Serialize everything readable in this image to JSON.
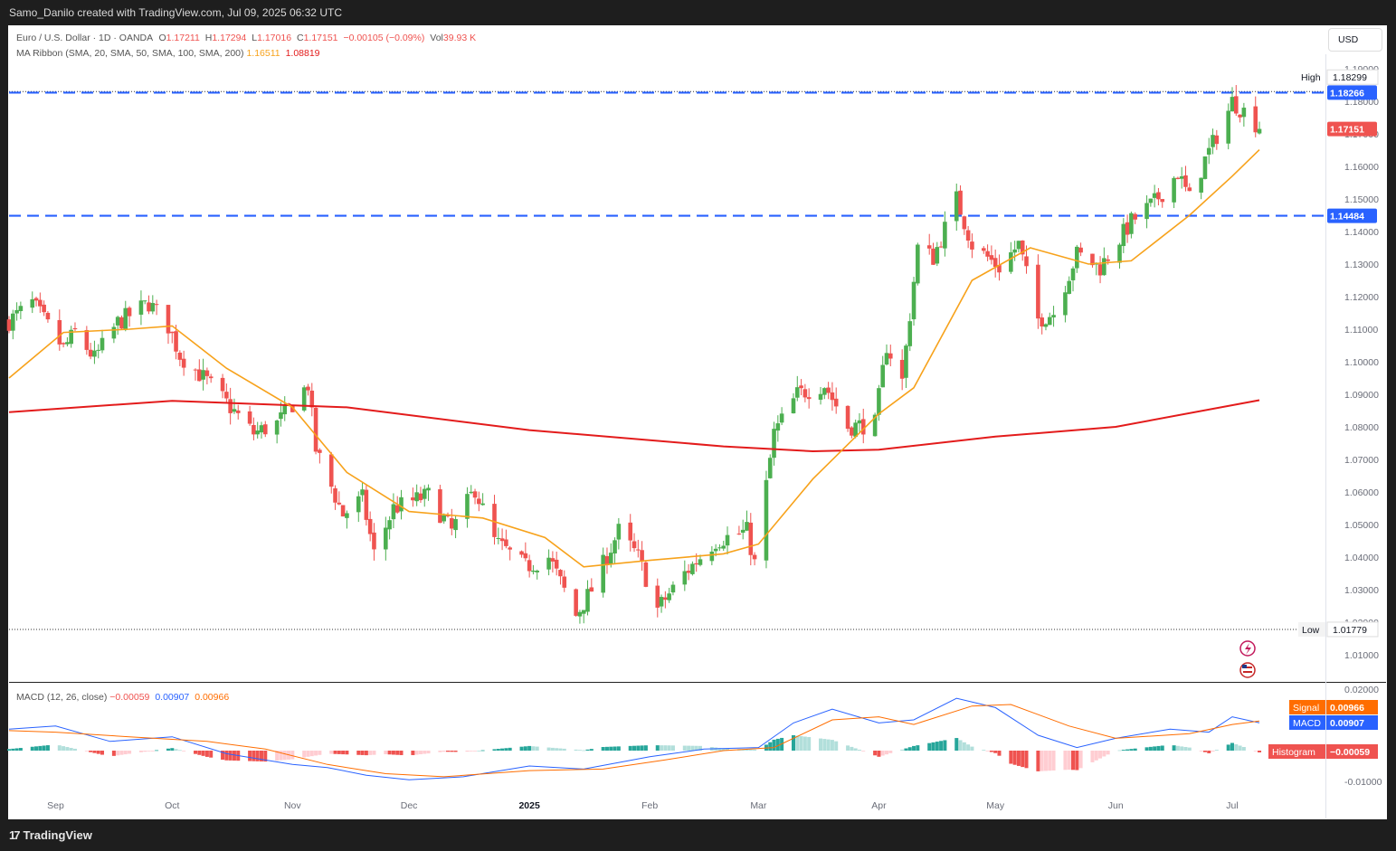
{
  "header": {
    "created_by": "Samo_Danilo created with TradingView.com, Jul 09, 2025 06:32 UTC"
  },
  "footer": {
    "brand": "TradingView",
    "logo_glyph": "17"
  },
  "legend": {
    "symbol": "Euro / U.S. Dollar · 1D · OANDA",
    "o_label": "O",
    "o_value": "1.17211",
    "h_label": "H",
    "h_value": "1.17294",
    "l_label": "L",
    "l_value": "1.17016",
    "c_label": "C",
    "c_value": "1.17151",
    "change": "−0.00105 (−0.09%)",
    "vol_label": "Vol",
    "vol_value": "39.93 K",
    "ma_label": "MA Ribbon (SMA, 20, SMA, 50, SMA, 100, SMA, 200)",
    "ma1_value": "1.16511",
    "ma2_value": "1.08819",
    "macd_label": "MACD (12, 26, close)",
    "macd_hist": "−0.00059",
    "macd_line": "0.00907",
    "macd_signal": "0.00966"
  },
  "currency_button": "USD",
  "colors": {
    "up": "#26a69a",
    "up_fill": "#4caf50",
    "down": "#ef5350",
    "ma20": "#f7a21b",
    "ma200": "#e31b1b",
    "level": "#2962ff",
    "macd": "#2962ff",
    "signal": "#ff6d00"
  },
  "chart_data": [
    {
      "type": "candlestick",
      "title": "Euro / U.S. Dollar · 1D · OANDA",
      "ylim": [
        1.0,
        1.19
      ],
      "y_ticks": [
        "1.01000",
        "1.02000",
        "1.03000",
        "1.04000",
        "1.05000",
        "1.06000",
        "1.07000",
        "1.08000",
        "1.09000",
        "1.10000",
        "1.11000",
        "1.12000",
        "1.13000",
        "1.14000",
        "1.15000",
        "1.16000",
        "1.17000",
        "1.18000",
        "1.19000"
      ],
      "x_labels": [
        {
          "label": "Sep",
          "date": "2024-09-01"
        },
        {
          "label": "Oct",
          "date": "2024-10-01"
        },
        {
          "label": "Nov",
          "date": "2024-11-01"
        },
        {
          "label": "Dec",
          "date": "2024-12-01"
        },
        {
          "label": "2025",
          "date": "2025-01-01"
        },
        {
          "label": "Feb",
          "date": "2025-02-01"
        },
        {
          "label": "Mar",
          "date": "2025-03-01"
        },
        {
          "label": "Apr",
          "date": "2025-04-01"
        },
        {
          "label": "May",
          "date": "2025-05-01"
        },
        {
          "label": "Jun",
          "date": "2025-06-01"
        },
        {
          "label": "Jul",
          "date": "2025-07-01"
        }
      ],
      "x_range": [
        "2024-08-20",
        "2025-07-25"
      ],
      "price_path": [
        [
          "2024-08-20",
          1.1125
        ],
        [
          "2024-08-26",
          1.118
        ],
        [
          "2024-09-03",
          1.104
        ],
        [
          "2024-09-06",
          1.109
        ],
        [
          "2024-09-11",
          1.101
        ],
        [
          "2024-09-17",
          1.112
        ],
        [
          "2024-09-25",
          1.118
        ],
        [
          "2024-09-30",
          1.111
        ],
        [
          "2024-10-03",
          1.102
        ],
        [
          "2024-10-10",
          1.094
        ],
        [
          "2024-10-16",
          1.086
        ],
        [
          "2024-10-22",
          1.078
        ],
        [
          "2024-10-28",
          1.081
        ],
        [
          "2024-11-01",
          1.087
        ],
        [
          "2024-11-05",
          1.093
        ],
        [
          "2024-11-07",
          1.073
        ],
        [
          "2024-11-14",
          1.053
        ],
        [
          "2024-11-19",
          1.058
        ],
        [
          "2024-11-22",
          1.041
        ],
        [
          "2024-11-27",
          1.055
        ],
        [
          "2024-12-06",
          1.059
        ],
        [
          "2024-12-12",
          1.048
        ],
        [
          "2024-12-18",
          1.061
        ],
        [
          "2024-12-23",
          1.045
        ],
        [
          "2024-12-31",
          1.037
        ],
        [
          "2025-01-06",
          1.04
        ],
        [
          "2025-01-13",
          1.022
        ],
        [
          "2025-01-17",
          1.03
        ],
        [
          "2025-01-24",
          1.048
        ],
        [
          "2025-01-29",
          1.04
        ],
        [
          "2025-02-03",
          1.024
        ],
        [
          "2025-02-10",
          1.035
        ],
        [
          "2025-02-18",
          1.045
        ],
        [
          "2025-02-26",
          1.048
        ],
        [
          "2025-02-28",
          1.038
        ],
        [
          "2025-03-05",
          1.078
        ],
        [
          "2025-03-11",
          1.09
        ],
        [
          "2025-03-18",
          1.093
        ],
        [
          "2025-03-24",
          1.08
        ],
        [
          "2025-03-31",
          1.081
        ],
        [
          "2025-04-03",
          1.105
        ],
        [
          "2025-04-07",
          1.094
        ],
        [
          "2025-04-11",
          1.135
        ],
        [
          "2025-04-15",
          1.132
        ],
        [
          "2025-04-21",
          1.15
        ],
        [
          "2025-04-25",
          1.136
        ],
        [
          "2025-05-02",
          1.129
        ],
        [
          "2025-05-07",
          1.136
        ],
        [
          "2025-05-12",
          1.113
        ],
        [
          "2025-05-16",
          1.115
        ],
        [
          "2025-05-22",
          1.133
        ],
        [
          "2025-05-28",
          1.129
        ],
        [
          "2025-06-05",
          1.143
        ],
        [
          "2025-06-11",
          1.149
        ],
        [
          "2025-06-17",
          1.158
        ],
        [
          "2025-06-20",
          1.15
        ],
        [
          "2025-06-24",
          1.162
        ],
        [
          "2025-06-30",
          1.177
        ],
        [
          "2025-07-01",
          1.18
        ],
        [
          "2025-07-04",
          1.177
        ],
        [
          "2025-07-08",
          1.172
        ]
      ],
      "last_close": 1.17151,
      "series": [
        {
          "name": "SMA 20",
          "values": [
            [
              "2024-08-20",
              1.095
            ],
            [
              "2024-09-03",
              1.109
            ],
            [
              "2024-09-20",
              1.11
            ],
            [
              "2024-10-01",
              1.111
            ],
            [
              "2024-10-15",
              1.098
            ],
            [
              "2024-11-01",
              1.086
            ],
            [
              "2024-11-15",
              1.066
            ],
            [
              "2024-12-01",
              1.054
            ],
            [
              "2024-12-20",
              1.052
            ],
            [
              "2025-01-05",
              1.046
            ],
            [
              "2025-01-15",
              1.037
            ],
            [
              "2025-02-01",
              1.039
            ],
            [
              "2025-02-20",
              1.041
            ],
            [
              "2025-03-01",
              1.044
            ],
            [
              "2025-03-15",
              1.064
            ],
            [
              "2025-04-01",
              1.084
            ],
            [
              "2025-04-10",
              1.092
            ],
            [
              "2025-04-25",
              1.125
            ],
            [
              "2025-05-10",
              1.135
            ],
            [
              "2025-05-25",
              1.13
            ],
            [
              "2025-06-05",
              1.131
            ],
            [
              "2025-06-20",
              1.145
            ],
            [
              "2025-07-01",
              1.157
            ],
            [
              "2025-07-08",
              1.16511
            ]
          ]
        },
        {
          "name": "SMA 200",
          "values": [
            [
              "2024-08-20",
              1.0845
            ],
            [
              "2024-10-01",
              1.088
            ],
            [
              "2024-11-15",
              1.086
            ],
            [
              "2025-01-01",
              1.079
            ],
            [
              "2025-02-20",
              1.074
            ],
            [
              "2025-03-15",
              1.0725
            ],
            [
              "2025-04-01",
              1.073
            ],
            [
              "2025-05-01",
              1.077
            ],
            [
              "2025-06-01",
              1.08
            ],
            [
              "2025-07-08",
              1.08819
            ]
          ]
        }
      ],
      "levels": [
        1.18266,
        1.14484
      ],
      "high": {
        "label": "High",
        "value": "1.18299"
      },
      "low": {
        "label": "Low",
        "value": "1.01779"
      },
      "price_labels": {
        "level_high": "1.18266",
        "last": "1.17151",
        "level_low": "1.14484"
      }
    },
    {
      "type": "macd",
      "title": "MACD (12, 26, close)",
      "ylim": [
        -0.015,
        0.02
      ],
      "y_ticks": [
        "0.02000",
        "-0.01000"
      ],
      "series": [
        {
          "name": "MACD",
          "values": [
            [
              "2024-08-20",
              0.007
            ],
            [
              "2024-09-01",
              0.008
            ],
            [
              "2024-09-15",
              0.003
            ],
            [
              "2024-10-01",
              0.0045
            ],
            [
              "2024-10-15",
              -0.001
            ],
            [
              "2024-11-01",
              -0.0045
            ],
            [
              "2024-11-10",
              -0.0055
            ],
            [
              "2024-11-20",
              -0.008
            ],
            [
              "2024-12-01",
              -0.0095
            ],
            [
              "2024-12-15",
              -0.0085
            ],
            [
              "2025-01-01",
              -0.005
            ],
            [
              "2025-01-15",
              -0.006
            ],
            [
              "2025-02-01",
              -0.002
            ],
            [
              "2025-02-15",
              0.0005
            ],
            [
              "2025-03-01",
              0.001
            ],
            [
              "2025-03-10",
              0.009
            ],
            [
              "2025-03-20",
              0.0135
            ],
            [
              "2025-04-01",
              0.009
            ],
            [
              "2025-04-10",
              0.01
            ],
            [
              "2025-04-21",
              0.017
            ],
            [
              "2025-05-01",
              0.014
            ],
            [
              "2025-05-12",
              0.005
            ],
            [
              "2025-05-22",
              0.001
            ],
            [
              "2025-06-01",
              0.004
            ],
            [
              "2025-06-15",
              0.007
            ],
            [
              "2025-06-25",
              0.006
            ],
            [
              "2025-07-01",
              0.011
            ],
            [
              "2025-07-08",
              0.00907
            ]
          ]
        },
        {
          "name": "Signal",
          "values": [
            [
              "2024-08-20",
              0.0065
            ],
            [
              "2024-09-01",
              0.006
            ],
            [
              "2024-09-20",
              0.0045
            ],
            [
              "2024-10-10",
              0.003
            ],
            [
              "2024-10-25",
              0.0005
            ],
            [
              "2024-11-10",
              -0.0045
            ],
            [
              "2024-11-25",
              -0.0075
            ],
            [
              "2024-12-10",
              -0.0085
            ],
            [
              "2025-01-01",
              -0.0065
            ],
            [
              "2025-01-20",
              -0.006
            ],
            [
              "2025-02-05",
              -0.003
            ],
            [
              "2025-02-20",
              0.0
            ],
            [
              "2025-03-05",
              0.001
            ],
            [
              "2025-03-20",
              0.01
            ],
            [
              "2025-04-01",
              0.011
            ],
            [
              "2025-04-10",
              0.0085
            ],
            [
              "2025-04-25",
              0.0145
            ],
            [
              "2025-05-05",
              0.015
            ],
            [
              "2025-05-20",
              0.008
            ],
            [
              "2025-06-01",
              0.004
            ],
            [
              "2025-06-20",
              0.0055
            ],
            [
              "2025-07-01",
              0.0085
            ],
            [
              "2025-07-08",
              0.00966
            ]
          ]
        }
      ],
      "labels": {
        "signal_label": "Signal",
        "signal_value": "0.00966",
        "macd_label": "MACD",
        "macd_value": "0.00907",
        "hist_label": "Histogram",
        "hist_value": "−0.00059"
      }
    }
  ]
}
